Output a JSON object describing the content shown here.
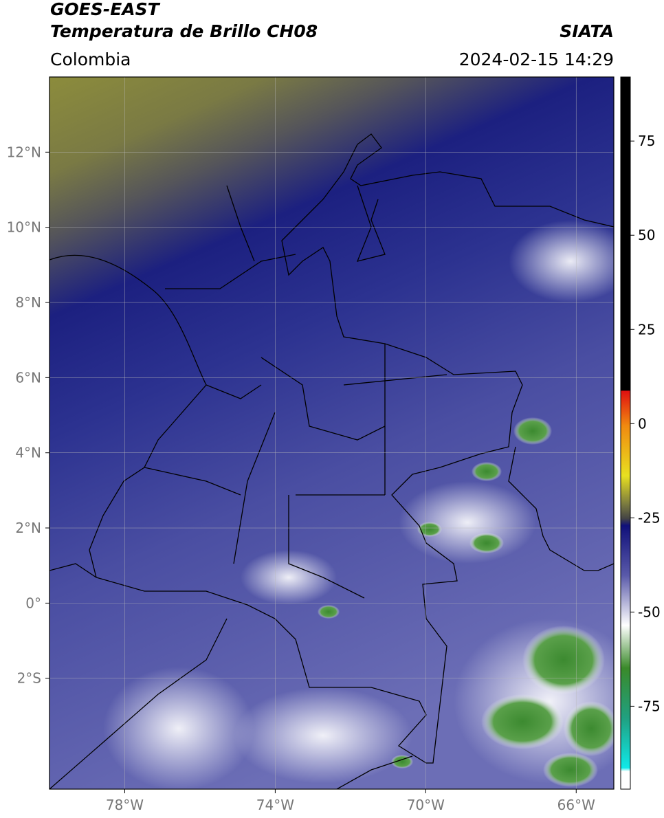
{
  "header": {
    "satellite": "GOES-EAST",
    "product": "Temperatura de Brillo CH08",
    "source": "SIATA",
    "region": "Colombia",
    "datetime": "2024-02-15 14:29"
  },
  "map": {
    "xlim": [
      -80,
      -65
    ],
    "ylim": [
      -4.95,
      14
    ],
    "xticks": [
      {
        "value": -78,
        "label": "78°W"
      },
      {
        "value": -74,
        "label": "74°W"
      },
      {
        "value": -70,
        "label": "70°W"
      },
      {
        "value": -66,
        "label": "66°W"
      }
    ],
    "yticks": [
      {
        "value": 12,
        "label": "12°N"
      },
      {
        "value": 10,
        "label": "10°N"
      },
      {
        "value": 8,
        "label": "8°N"
      },
      {
        "value": 6,
        "label": "6°N"
      },
      {
        "value": 4,
        "label": "4°N"
      },
      {
        "value": 2,
        "label": "2°N"
      },
      {
        "value": 0,
        "label": "0°"
      },
      {
        "value": -2,
        "label": "2°S"
      }
    ],
    "grid": true
  },
  "colorbar": {
    "lim": [
      -97,
      92
    ],
    "ticks": [
      75,
      50,
      25,
      0,
      -25,
      -50,
      -75
    ]
  }
}
